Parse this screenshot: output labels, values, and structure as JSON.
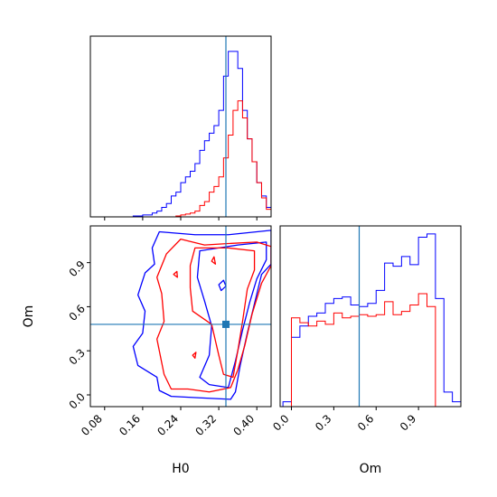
{
  "chart_data": {
    "type": "corner",
    "parameters": [
      "H0",
      "Om"
    ],
    "truth": {
      "H0": 0.335,
      "Om": 0.48
    },
    "series_colors": [
      "#0000ff",
      "#ff0000"
    ],
    "truth_color": "#1f77b4",
    "panels": [
      {
        "id": "hist-H0",
        "type": "step-histogram",
        "xlim": [
          0.05,
          0.43
        ],
        "xticks": [
          0.08,
          0.16,
          0.24,
          0.32,
          0.4
        ],
        "xtick_labels_shown": false,
        "bin_edges": [
          0.05,
          0.06,
          0.07,
          0.08,
          0.09,
          0.1,
          0.11,
          0.12,
          0.13,
          0.14,
          0.15,
          0.16,
          0.17,
          0.18,
          0.19,
          0.2,
          0.21,
          0.22,
          0.23,
          0.24,
          0.25,
          0.26,
          0.27,
          0.28,
          0.29,
          0.3,
          0.31,
          0.32,
          0.33,
          0.34,
          0.35,
          0.36,
          0.37,
          0.38,
          0.39,
          0.4,
          0.41,
          0.42,
          0.43
        ],
        "series": [
          {
            "color": "#0000ff",
            "counts": [
              0,
              0,
              0,
              0,
              0,
              0,
              0,
              0,
              0,
              0.5,
              0.5,
              1,
              1,
              2,
              3,
              5,
              7,
              11,
              13,
              18,
              21,
              24,
              28,
              35,
              40,
              44,
              48,
              56,
              74,
              87,
              87,
              78,
              56,
              41,
              29,
              18,
              11,
              5
            ]
          },
          {
            "color": "#ff0000",
            "counts": [
              0,
              0,
              0,
              0,
              0,
              0,
              0,
              0,
              0,
              0,
              0,
              0,
              0,
              0,
              0,
              0,
              0,
              0,
              0.5,
              1,
              1.5,
              2,
              3,
              6,
              8,
              13,
              16,
              21,
              31,
              43,
              56,
              61,
              52,
              41,
              29,
              18,
              10,
              4
            ]
          }
        ],
        "ymax": 95
      },
      {
        "id": "contour-H0-Om",
        "type": "contour",
        "xlim": [
          0.05,
          0.43
        ],
        "ylim": [
          -0.08,
          1.15
        ],
        "xticks": [
          0.08,
          0.16,
          0.24,
          0.32,
          0.4
        ],
        "xtick_labels": [
          "0.08",
          "0.16",
          "0.24",
          "0.32",
          "0.40"
        ],
        "yticks": [
          0.0,
          0.3,
          0.6,
          0.9
        ],
        "ytick_labels": [
          "0.0",
          "0.3",
          "0.6",
          "0.9"
        ],
        "xlabel": "H0",
        "ylabel": "Om",
        "contours": [
          {
            "color": "#0000ff",
            "points": [
              [
                0.195,
                1.11
              ],
              [
                0.27,
                1.09
              ],
              [
                0.34,
                1.09
              ],
              [
                0.43,
                1.12
              ],
              [
                0.43,
                0.89
              ],
              [
                0.41,
                0.82
              ],
              [
                0.395,
                0.62
              ],
              [
                0.38,
                0.42
              ],
              [
                0.365,
                0.2
              ],
              [
                0.355,
                0.02
              ],
              [
                0.345,
                -0.03
              ],
              [
                0.28,
                -0.02
              ],
              [
                0.22,
                -0.01
              ],
              [
                0.195,
                0.03
              ],
              [
                0.19,
                0.12
              ],
              [
                0.15,
                0.2
              ],
              [
                0.14,
                0.33
              ],
              [
                0.16,
                0.42
              ],
              [
                0.165,
                0.57
              ],
              [
                0.15,
                0.68
              ],
              [
                0.165,
                0.83
              ],
              [
                0.185,
                0.89
              ],
              [
                0.18,
                1.0
              ]
            ]
          },
          {
            "color": "#0000ff",
            "points": [
              [
                0.28,
                0.98
              ],
              [
                0.36,
                1.02
              ],
              [
                0.42,
                1.04
              ],
              [
                0.42,
                0.92
              ],
              [
                0.4,
                0.79
              ],
              [
                0.385,
                0.63
              ],
              [
                0.37,
                0.44
              ],
              [
                0.355,
                0.23
              ],
              [
                0.34,
                0.05
              ],
              [
                0.3,
                0.07
              ],
              [
                0.28,
                0.12
              ],
              [
                0.3,
                0.27
              ],
              [
                0.305,
                0.47
              ],
              [
                0.29,
                0.64
              ],
              [
                0.275,
                0.8
              ]
            ]
          },
          {
            "color": "#0000ff",
            "points": [
              [
                0.32,
                0.75
              ],
              [
                0.33,
                0.78
              ],
              [
                0.335,
                0.74
              ],
              [
                0.325,
                0.71
              ]
            ]
          },
          {
            "color": "#ff0000",
            "points": [
              [
                0.24,
                1.06
              ],
              [
                0.29,
                1.02
              ],
              [
                0.34,
                1.03
              ],
              [
                0.4,
                1.04
              ],
              [
                0.43,
                1.01
              ],
              [
                0.43,
                0.88
              ],
              [
                0.41,
                0.76
              ],
              [
                0.39,
                0.55
              ],
              [
                0.375,
                0.34
              ],
              [
                0.36,
                0.17
              ],
              [
                0.345,
                0.05
              ],
              [
                0.3,
                0.02
              ],
              [
                0.255,
                0.04
              ],
              [
                0.22,
                0.04
              ],
              [
                0.205,
                0.14
              ],
              [
                0.195,
                0.3
              ],
              [
                0.19,
                0.38
              ],
              [
                0.205,
                0.5
              ],
              [
                0.2,
                0.69
              ],
              [
                0.19,
                0.8
              ],
              [
                0.21,
                0.96
              ]
            ]
          },
          {
            "color": "#ff0000",
            "points": [
              [
                0.27,
                1.0
              ],
              [
                0.34,
                1.0
              ],
              [
                0.395,
                0.98
              ],
              [
                0.395,
                0.85
              ],
              [
                0.38,
                0.72
              ],
              [
                0.37,
                0.5
              ],
              [
                0.36,
                0.3
              ],
              [
                0.35,
                0.12
              ],
              [
                0.33,
                0.14
              ],
              [
                0.32,
                0.27
              ],
              [
                0.305,
                0.48
              ],
              [
                0.265,
                0.57
              ],
              [
                0.26,
                0.73
              ],
              [
                0.26,
                0.88
              ]
            ]
          },
          {
            "color": "#ff0000",
            "points": [
              [
                0.265,
                0.27
              ],
              [
                0.272,
                0.29
              ],
              [
                0.27,
                0.25
              ]
            ]
          },
          {
            "color": "#ff0000",
            "points": [
              [
                0.225,
                0.82
              ],
              [
                0.232,
                0.84
              ],
              [
                0.233,
                0.8
              ]
            ]
          },
          {
            "color": "#ff0000",
            "points": [
              [
                0.305,
                0.91
              ],
              [
                0.31,
                0.94
              ],
              [
                0.313,
                0.89
              ]
            ]
          }
        ],
        "truth_point": [
          0.335,
          0.48
        ]
      },
      {
        "id": "hist-Om",
        "type": "step-histogram",
        "xlim": [
          -0.08,
          1.2
        ],
        "xticks": [
          0.0,
          0.3,
          0.6,
          0.9
        ],
        "xtick_labels": [
          "0.0",
          "0.3",
          "0.6",
          "0.9"
        ],
        "xlabel": "Om",
        "bin_edges": [
          -0.06,
          0.0,
          0.06,
          0.12,
          0.18,
          0.24,
          0.3,
          0.36,
          0.42,
          0.48,
          0.54,
          0.6,
          0.66,
          0.72,
          0.78,
          0.84,
          0.9,
          0.96,
          1.02,
          1.08,
          1.14,
          1.2
        ],
        "series": [
          {
            "color": "#0000ff",
            "counts": [
              3,
              43,
              50,
              56,
              58,
              64,
              67,
              68,
              63,
              62,
              64,
              72,
              89,
              87,
              93,
              88,
              105,
              107,
              67,
              9,
              3
            ]
          },
          {
            "color": "#ff0000",
            "counts": [
              0,
              55,
              52,
              50,
              53,
              51,
              58,
              55,
              56,
              57,
              56,
              57,
              65,
              57,
              59,
              63,
              70,
              62,
              0,
              0,
              0
            ]
          }
        ],
        "ymax": 112
      }
    ]
  }
}
